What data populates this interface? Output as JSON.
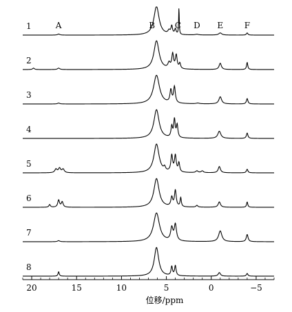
{
  "chart_data": {
    "type": "line",
    "subtype": "stacked NMR spectra",
    "xlabel": "位移/ppm",
    "x_axis_direction": "reversed",
    "xlim": [
      21,
      -7
    ],
    "xticks": [
      20,
      15,
      10,
      5,
      0,
      -5
    ],
    "xtick_labels": [
      "20",
      "15",
      "10",
      "5",
      "0",
      "−5"
    ],
    "peak_labels": [
      {
        "label": "A",
        "x": 17.0
      },
      {
        "label": "B",
        "x": 6.6
      },
      {
        "label": "C",
        "x": 3.7
      },
      {
        "label": "D",
        "x": 1.6
      },
      {
        "label": "E",
        "x": -1.0
      },
      {
        "label": "F",
        "x": -4.0
      }
    ],
    "series": [
      {
        "name": "1",
        "peaks": [
          {
            "x": 17.0,
            "h": 0.06,
            "w": 0.15
          },
          {
            "x": 6.1,
            "h": 1.6,
            "w": 0.35
          },
          {
            "x": 4.7,
            "h": 0.2,
            "w": 0.15
          },
          {
            "x": 4.4,
            "h": 0.45,
            "w": 0.1
          },
          {
            "x": 4.0,
            "h": 0.3,
            "w": 0.1
          },
          {
            "x": 3.6,
            "h": 1.5,
            "w": 0.04
          },
          {
            "x": 1.6,
            "h": 0.04,
            "w": 0.2
          },
          {
            "x": -1.0,
            "h": 0.12,
            "w": 0.2
          },
          {
            "x": -4.0,
            "h": 0.12,
            "w": 0.1
          }
        ]
      },
      {
        "name": "2",
        "peaks": [
          {
            "x": 19.8,
            "h": 0.08,
            "w": 0.12
          },
          {
            "x": 17.0,
            "h": 0.08,
            "w": 0.15
          },
          {
            "x": 6.1,
            "h": 1.6,
            "w": 0.35
          },
          {
            "x": 4.7,
            "h": 0.3,
            "w": 0.15
          },
          {
            "x": 4.3,
            "h": 0.8,
            "w": 0.12
          },
          {
            "x": 3.9,
            "h": 0.75,
            "w": 0.12
          },
          {
            "x": 3.5,
            "h": 0.3,
            "w": 0.1
          },
          {
            "x": -1.0,
            "h": 0.35,
            "w": 0.15
          },
          {
            "x": -4.0,
            "h": 0.4,
            "w": 0.08
          }
        ]
      },
      {
        "name": "3",
        "peaks": [
          {
            "x": 17.0,
            "h": 0.05,
            "w": 0.15
          },
          {
            "x": 6.1,
            "h": 1.6,
            "w": 0.4
          },
          {
            "x": 4.5,
            "h": 0.7,
            "w": 0.12
          },
          {
            "x": 4.1,
            "h": 0.9,
            "w": 0.12
          },
          {
            "x": 1.5,
            "h": 0.04,
            "w": 0.2
          },
          {
            "x": -1.0,
            "h": 0.4,
            "w": 0.18
          },
          {
            "x": -4.0,
            "h": 0.3,
            "w": 0.1
          }
        ]
      },
      {
        "name": "4",
        "peaks": [
          {
            "x": 6.1,
            "h": 1.6,
            "w": 0.35
          },
          {
            "x": 4.4,
            "h": 0.6,
            "w": 0.1
          },
          {
            "x": 4.1,
            "h": 1.0,
            "w": 0.1
          },
          {
            "x": 3.8,
            "h": 0.7,
            "w": 0.1
          },
          {
            "x": -0.9,
            "h": 0.4,
            "w": 0.2
          },
          {
            "x": -4.0,
            "h": 0.3,
            "w": 0.1
          }
        ]
      },
      {
        "name": "5",
        "peaks": [
          {
            "x": 17.3,
            "h": 0.2,
            "w": 0.15
          },
          {
            "x": 16.9,
            "h": 0.25,
            "w": 0.15
          },
          {
            "x": 16.5,
            "h": 0.2,
            "w": 0.15
          },
          {
            "x": 6.1,
            "h": 1.6,
            "w": 0.35
          },
          {
            "x": 5.2,
            "h": 0.2,
            "w": 0.12
          },
          {
            "x": 4.4,
            "h": 0.9,
            "w": 0.12
          },
          {
            "x": 4.0,
            "h": 0.9,
            "w": 0.12
          },
          {
            "x": 3.6,
            "h": 0.5,
            "w": 0.1
          },
          {
            "x": 1.6,
            "h": 0.1,
            "w": 0.15
          },
          {
            "x": 1.0,
            "h": 0.1,
            "w": 0.15
          },
          {
            "x": -0.9,
            "h": 0.35,
            "w": 0.15
          },
          {
            "x": -4.0,
            "h": 0.2,
            "w": 0.1
          }
        ]
      },
      {
        "name": "6",
        "peaks": [
          {
            "x": 18.0,
            "h": 0.15,
            "w": 0.1
          },
          {
            "x": 17.0,
            "h": 0.4,
            "w": 0.12
          },
          {
            "x": 16.6,
            "h": 0.3,
            "w": 0.12
          },
          {
            "x": 6.1,
            "h": 1.6,
            "w": 0.35
          },
          {
            "x": 4.4,
            "h": 0.5,
            "w": 0.12
          },
          {
            "x": 4.0,
            "h": 0.9,
            "w": 0.12
          },
          {
            "x": 3.4,
            "h": 0.5,
            "w": 0.08
          },
          {
            "x": 1.6,
            "h": 0.1,
            "w": 0.12
          },
          {
            "x": -0.9,
            "h": 0.3,
            "w": 0.15
          },
          {
            "x": -4.0,
            "h": 0.3,
            "w": 0.08
          }
        ]
      },
      {
        "name": "7",
        "peaks": [
          {
            "x": 17.0,
            "h": 0.06,
            "w": 0.15
          },
          {
            "x": 6.1,
            "h": 1.6,
            "w": 0.4
          },
          {
            "x": 4.4,
            "h": 0.7,
            "w": 0.15
          },
          {
            "x": 4.0,
            "h": 0.9,
            "w": 0.15
          },
          {
            "x": -1.0,
            "h": 0.6,
            "w": 0.22
          },
          {
            "x": -4.0,
            "h": 0.4,
            "w": 0.12
          }
        ]
      },
      {
        "name": "8",
        "peaks": [
          {
            "x": 17.0,
            "h": 0.25,
            "w": 0.08
          },
          {
            "x": 6.1,
            "h": 1.6,
            "w": 0.3
          },
          {
            "x": 4.4,
            "h": 0.5,
            "w": 0.1
          },
          {
            "x": 4.0,
            "h": 0.55,
            "w": 0.1
          },
          {
            "x": -0.9,
            "h": 0.2,
            "w": 0.15
          },
          {
            "x": -4.0,
            "h": 0.15,
            "w": 0.1
          }
        ]
      }
    ]
  }
}
